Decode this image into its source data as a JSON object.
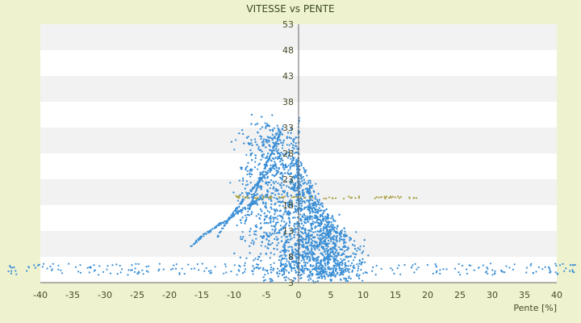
{
  "chart_data": {
    "type": "scatter",
    "title": "VITESSE vs PENTE",
    "xlabel": "Pente [%]",
    "ylabel": "",
    "xlim": [
      -40,
      40
    ],
    "ylim": [
      3,
      53
    ],
    "x_ticks": [
      "-40",
      "-35",
      "-30",
      "-25",
      "-20",
      "-15",
      "-10",
      "-5",
      "0",
      "5",
      "10",
      "15",
      "20",
      "25",
      "30",
      "35",
      "40"
    ],
    "y_ticks": [
      "3",
      "8",
      "13",
      "18",
      "23",
      "28",
      "33",
      "38",
      "43",
      "48",
      "53"
    ],
    "grid": "horizontal alternating bands",
    "legend": "none",
    "series_color": "#3b8fd6",
    "secondary_color": "#a8a040",
    "background_color": "#eef2cf",
    "plot_band_color": "#f2f2f2",
    "plot_color": "#ffffff",
    "point_generation": {
      "note_is_script_only": true
    },
    "series": [
      {
        "values_summary": [
          {
            "x": -40,
            "y": 9
          },
          {
            "x": -35,
            "y": 5
          },
          {
            "x": -30,
            "y": 8
          },
          {
            "x": -20,
            "y": 12
          },
          {
            "x": -15,
            "y": 18
          },
          {
            "x": -10,
            "y": 26
          },
          {
            "x": -5,
            "y": 30
          },
          {
            "x": -2,
            "y": 27
          },
          {
            "x": 0,
            "y": 22
          },
          {
            "x": 2,
            "y": 15
          },
          {
            "x": 5,
            "y": 11
          },
          {
            "x": 10,
            "y": 8
          },
          {
            "x": 15,
            "y": 7
          },
          {
            "x": 20,
            "y": 6
          },
          {
            "x": 25,
            "y": 5
          },
          {
            "x": 30,
            "y": 5
          },
          {
            "x": 35,
            "y": 5
          },
          {
            "x": 40,
            "y": 5
          }
        ]
      }
    ]
  }
}
